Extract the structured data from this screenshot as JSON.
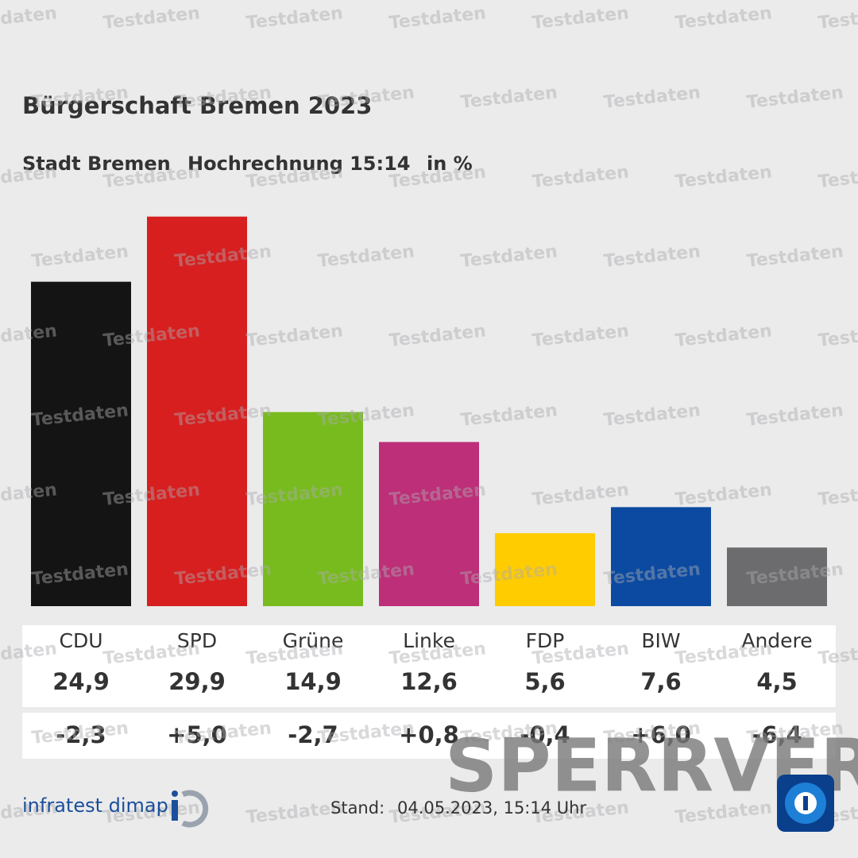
{
  "chart_data": {
    "type": "bar",
    "title": "Bürgerschaft Bremen 2023",
    "subtitle_region": "Stadt Bremen",
    "subtitle_status": "Hochrechnung 15:14",
    "unit": "in %",
    "categories": [
      "CDU",
      "SPD",
      "Grüne",
      "Linke",
      "FDP",
      "BIW",
      "Andere"
    ],
    "values": [
      24.9,
      29.9,
      14.9,
      12.6,
      5.6,
      7.6,
      4.5
    ],
    "value_labels": [
      "24,9",
      "29,9",
      "14,9",
      "12,6",
      "5,6",
      "7,6",
      "4,5"
    ],
    "colors": [
      "#141414",
      "#d71f1f",
      "#78bb1e",
      "#bd2f78",
      "#ffcc00",
      "#0b4aa0",
      "#6c6c6e"
    ],
    "changes": {
      "values": [
        -2.3,
        5.0,
        -2.7,
        0.8,
        -0.4,
        6.0,
        -6.4
      ],
      "value_labels": [
        "-2,3",
        "+5,0",
        "-2,7",
        "+0,8",
        "-0,4",
        "+6,0",
        "-6,4"
      ]
    },
    "ylim": [
      0,
      30
    ],
    "source": "infratest dimap",
    "stand_label": "Stand:",
    "stand": "04.05.2023, 15:14 Uhr",
    "watermark": "Testdaten",
    "overlay": "SPERRVER"
  }
}
